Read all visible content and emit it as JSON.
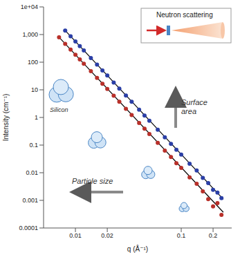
{
  "chart_data": {
    "type": "scatter",
    "x_label": "q  (Å⁻¹)",
    "y_label": "Intensity  (cm⁻¹)",
    "annotations": [
      "Neutron scattering",
      "Surface area",
      "Particle size",
      "Silicon"
    ],
    "log": true,
    "grid": false,
    "xlim": [
      0.005,
      0.3
    ],
    "ylim": [
      0.0001,
      10000
    ],
    "xticks": [
      0.01,
      0.02,
      0.1,
      0.2
    ],
    "yticks": [
      0.0001,
      0.001,
      0.01,
      0.1,
      1,
      10,
      100,
      {
        "value": 1000,
        "label": "1,000"
      },
      {
        "value": 10000,
        "label": "1e+04"
      }
    ],
    "series": [
      {
        "type": "scatter",
        "color": "#2b3fa6",
        "marker": "circle",
        "x": [
          0.008,
          0.009,
          0.01,
          0.011,
          0.012,
          0.014,
          0.016,
          0.018,
          0.02,
          0.023,
          0.026,
          0.03,
          0.034,
          0.04,
          0.045,
          0.05,
          0.06,
          0.07,
          0.08,
          0.09,
          0.1,
          0.12,
          0.14,
          0.16,
          0.18,
          0.2,
          0.22,
          0.24
        ],
        "values": [
          1400,
          864,
          560,
          379,
          266,
          141,
          82,
          50,
          33,
          18.4,
          11.1,
          6.2,
          3.7,
          1.9,
          1.17,
          0.76,
          0.36,
          0.19,
          0.11,
          0.068,
          0.045,
          0.021,
          0.012,
          0.0065,
          0.0042,
          0.0024,
          0.0019,
          0.0012
        ]
      },
      {
        "type": "scatter",
        "color": "#b8302a",
        "marker": "circle",
        "x": [
          0.007,
          0.008,
          0.009,
          0.01,
          0.011,
          0.012,
          0.014,
          0.016,
          0.018,
          0.02,
          0.023,
          0.026,
          0.03,
          0.034,
          0.04,
          0.045,
          0.05,
          0.06,
          0.07,
          0.08,
          0.09,
          0.1,
          0.12,
          0.14,
          0.16,
          0.18,
          0.2,
          0.22,
          0.24
        ],
        "values": [
          800,
          460,
          285,
          185,
          125,
          88,
          47,
          27,
          16.6,
          10.8,
          6.1,
          3.7,
          2.05,
          1.22,
          0.63,
          0.39,
          0.25,
          0.12,
          0.063,
          0.037,
          0.022,
          0.015,
          0.0068,
          0.004,
          0.0021,
          0.0011,
          0.0006,
          0.0008,
          0.0003
        ]
      },
      {
        "type": "line",
        "color": "#000000",
        "line_style": "solid",
        "x": [
          0.008,
          0.25
        ],
        "values": [
          1400,
          0.0011
        ]
      },
      {
        "type": "line",
        "color": "#000000",
        "line_style": "solid",
        "x": [
          0.007,
          0.25
        ],
        "values": [
          800,
          0.00037
        ]
      }
    ]
  }
}
